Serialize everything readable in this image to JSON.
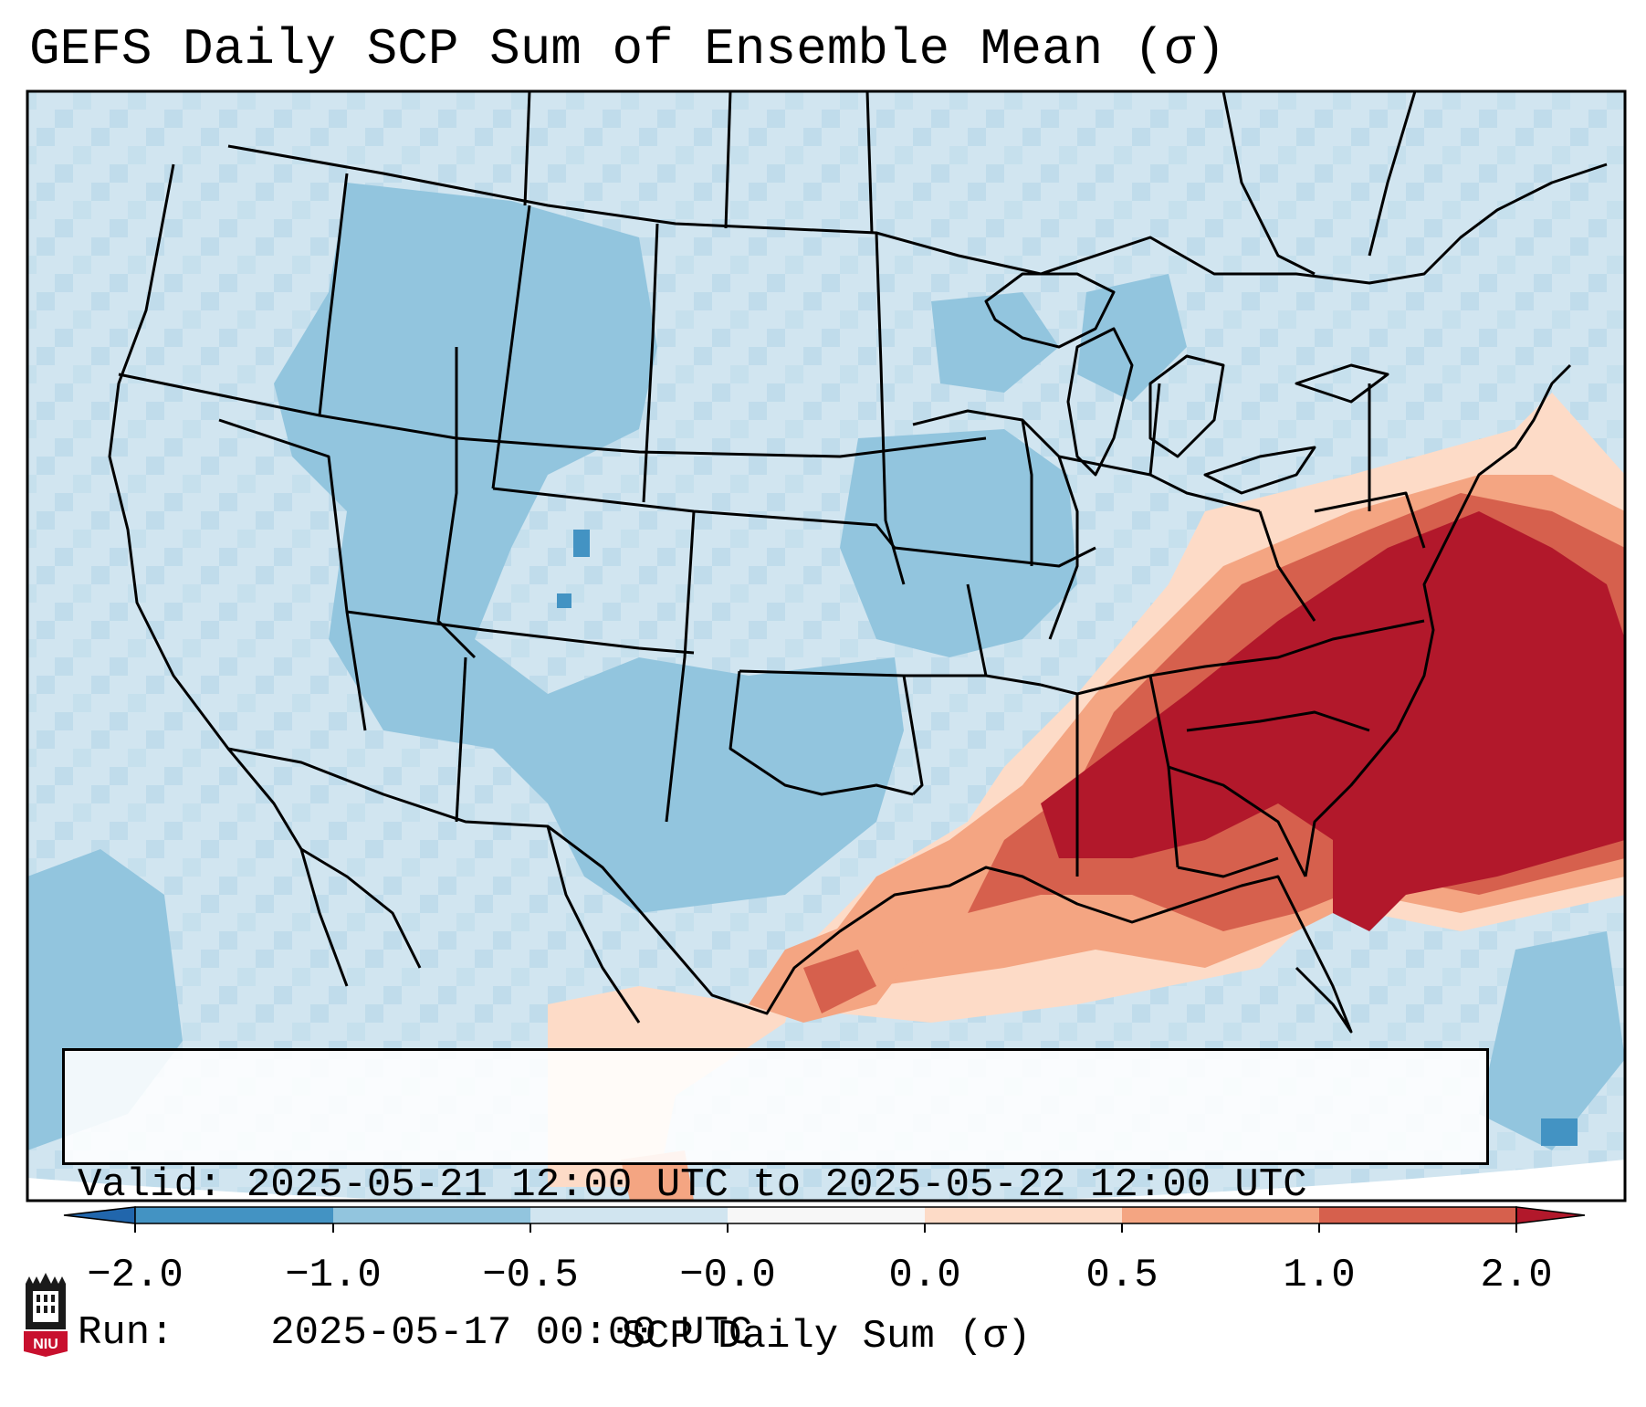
{
  "title": "GEFS Daily SCP Sum of Ensemble Mean (σ)",
  "info": {
    "valid_label": "Valid:",
    "valid_value": "2025-05-21 12:00 UTC to 2025-05-22 12:00 UTC",
    "run_label": "Run:",
    "run_value": "2025-05-17 00:00 UTC"
  },
  "colorbar": {
    "label": "SCP Daily Sum (σ)",
    "ticks": [
      "−2.0",
      "−1.0",
      "−0.5",
      "−0.0",
      "0.0",
      "0.5",
      "1.0",
      "2.0"
    ],
    "colors": {
      "under": "#2166ac",
      "bin_neg2_neg1": "#4393c3",
      "bin_neg1_neg05": "#92c5de",
      "bin_neg05_0": "#d1e5f0",
      "bin_0_0": "#f7f7f7",
      "bin_0_05": "#fddbc7",
      "bin_05_1": "#f4a582",
      "bin_1_2": "#d6604d",
      "over": "#b2182b"
    }
  },
  "logo": {
    "text": "NIU",
    "name": "niu-logo"
  }
}
